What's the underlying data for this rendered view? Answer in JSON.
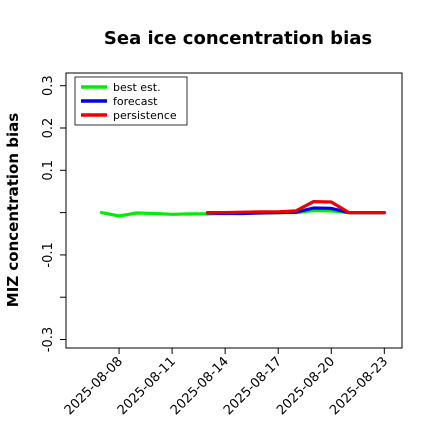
{
  "chart_data": {
    "type": "line",
    "title": "Sea ice concentration bias",
    "xlabel": "",
    "ylabel": "MIZ concentration bias",
    "ylim": [
      -0.32,
      0.33
    ],
    "yticks": [
      -0.3,
      -0.2,
      -0.1,
      0.0,
      0.1,
      0.2,
      0.3
    ],
    "ytick_labels": [
      "-0.3",
      "",
      "-0.1",
      "",
      "0.1",
      "0.2",
      "0.3"
    ],
    "xlim": [
      "2025-08-05",
      "2025-08-24"
    ],
    "xticks": [
      "2025-08-08",
      "2025-08-11",
      "2025-08-14",
      "2025-08-17",
      "2025-08-20",
      "2025-08-23"
    ],
    "xtick_labels": [
      "2025-08-08",
      "2025-08-11",
      "2025-08-14",
      "2025-08-17",
      "2025-08-20",
      "2025-08-23"
    ],
    "highlight_tick": "2025-08-14",
    "highlight_color": "#228b22",
    "grid": false,
    "legend_position": "upper-left",
    "series": [
      {
        "name": "best est.",
        "color": "#00ee00",
        "x": [
          "2025-08-07",
          "2025-08-08",
          "2025-08-09",
          "2025-08-10",
          "2025-08-11",
          "2025-08-12",
          "2025-08-13",
          "2025-08-14",
          "2025-08-15",
          "2025-08-16",
          "2025-08-17",
          "2025-08-18",
          "2025-08-19",
          "2025-08-20",
          "2025-08-21",
          "2025-08-22",
          "2025-08-23"
        ],
        "y": [
          0.0,
          -0.008,
          -0.001,
          -0.002,
          -0.004,
          -0.003,
          -0.003,
          -0.002,
          -0.001,
          0.0,
          0.0,
          0.0,
          0.005,
          0.004,
          0.0,
          0.0,
          0.0
        ]
      },
      {
        "name": "forecast",
        "color": "#0000ee",
        "x": [
          "2025-08-13",
          "2025-08-14",
          "2025-08-15",
          "2025-08-16",
          "2025-08-17",
          "2025-08-18",
          "2025-08-19",
          "2025-08-20",
          "2025-08-21",
          "2025-08-22",
          "2025-08-23"
        ],
        "y": [
          -0.001,
          -0.002,
          -0.002,
          -0.001,
          0.0,
          0.001,
          0.011,
          0.01,
          0.0,
          0.0,
          0.0
        ]
      },
      {
        "name": "persistence",
        "color": "#ee0000",
        "x": [
          "2025-08-13",
          "2025-08-14",
          "2025-08-15",
          "2025-08-16",
          "2025-08-17",
          "2025-08-18",
          "2025-08-19",
          "2025-08-20",
          "2025-08-21",
          "2025-08-22",
          "2025-08-23"
        ],
        "y": [
          0.0,
          0.0,
          0.001,
          0.002,
          0.002,
          0.004,
          0.026,
          0.025,
          0.0,
          0.0,
          0.0
        ]
      }
    ]
  }
}
